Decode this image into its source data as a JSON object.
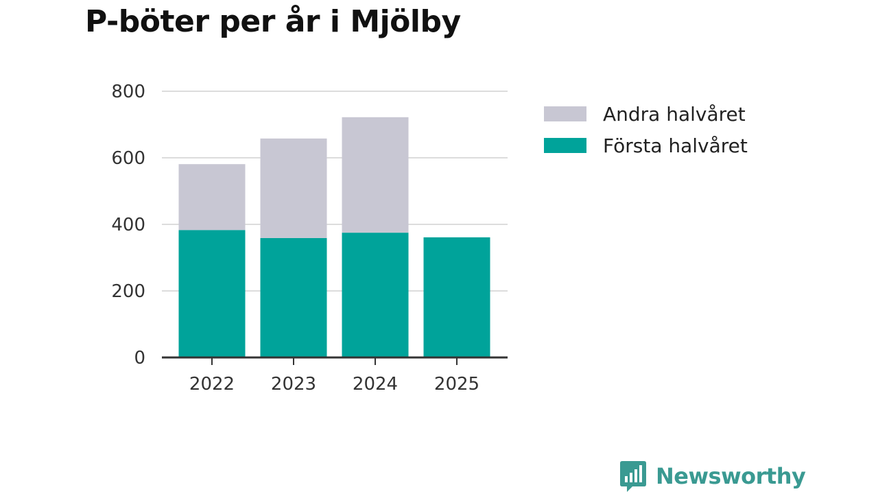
{
  "title": "P-böter per år i Mjölby",
  "chart_data": {
    "type": "bar",
    "stacked": true,
    "title": "P-böter per år i Mjölby",
    "xlabel": "",
    "ylabel": "",
    "categories": [
      "2022",
      "2023",
      "2024",
      "2025"
    ],
    "series": [
      {
        "name": "Första halvåret",
        "color": "#00a39a",
        "values": [
          383,
          359,
          375,
          361
        ]
      },
      {
        "name": "Andra halvåret",
        "color": "#c8c7d3",
        "values": [
          198,
          299,
          347,
          0
        ]
      }
    ],
    "ylim": [
      0,
      800
    ],
    "yticks": [
      0,
      200,
      400,
      600,
      800
    ],
    "grid": true,
    "legend_position": "right"
  },
  "legend": [
    {
      "label": "Andra halvåret",
      "color": "#c8c7d3"
    },
    {
      "label": "Första halvåret",
      "color": "#00a39a"
    }
  ],
  "brand": {
    "name": "Newsworthy",
    "icon": "bar-chart-speech-bubble-icon",
    "color": "#3a9a92"
  }
}
